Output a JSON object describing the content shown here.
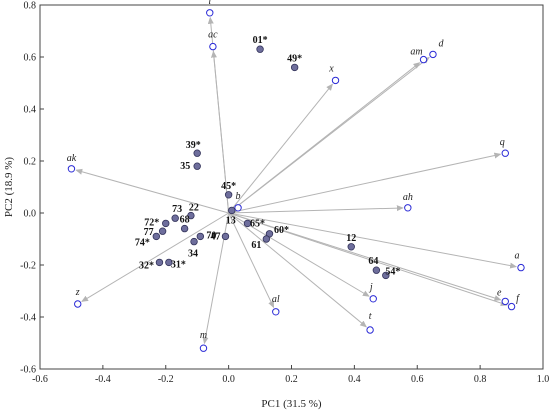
{
  "chart_data": {
    "type": "scatter",
    "subtype": "pca-biplot",
    "xlabel": "PC1 (31.5 %)",
    "ylabel": "PC2 (18.9 %)",
    "xlim": [
      -0.6,
      1.0
    ],
    "ylim": [
      -0.6,
      0.8
    ],
    "x_ticks": [
      "-0.6",
      "-0.4",
      "-0.2",
      "0.0",
      "0.2",
      "0.4",
      "0.6",
      "0.8",
      "1.0"
    ],
    "y_ticks": [
      "-0.6",
      "-0.4",
      "-0.2",
      "0.0",
      "0.2",
      "0.4",
      "0.6",
      "0.8"
    ],
    "grid": false,
    "colors": {
      "variable_marker": "#2a2ad6",
      "observation_marker": "#6e6e9c",
      "arrow": "#b4b4b4"
    },
    "variables": [
      {
        "label": "i",
        "x": -0.06,
        "y": 0.77
      },
      {
        "label": "ac",
        "x": -0.05,
        "y": 0.64
      },
      {
        "label": "am",
        "x": 0.62,
        "y": 0.59
      },
      {
        "label": "d",
        "x": 0.65,
        "y": 0.61
      },
      {
        "label": "x",
        "x": 0.34,
        "y": 0.51
      },
      {
        "label": "q",
        "x": 0.88,
        "y": 0.23
      },
      {
        "label": "ak",
        "x": -0.5,
        "y": 0.17
      },
      {
        "label": "b",
        "x": 0.03,
        "y": 0.02
      },
      {
        "label": "ah",
        "x": 0.57,
        "y": 0.02
      },
      {
        "label": "a",
        "x": 0.93,
        "y": -0.21
      },
      {
        "label": "e",
        "x": 0.88,
        "y": -0.34
      },
      {
        "label": "f",
        "x": 0.9,
        "y": -0.36
      },
      {
        "label": "j",
        "x": 0.46,
        "y": -0.33
      },
      {
        "label": "t",
        "x": 0.45,
        "y": -0.45
      },
      {
        "label": "z",
        "x": -0.48,
        "y": -0.35
      },
      {
        "label": "al",
        "x": 0.15,
        "y": -0.38
      },
      {
        "label": "m",
        "x": -0.08,
        "y": -0.52
      }
    ],
    "observations": [
      {
        "label": "01*",
        "x": 0.1,
        "y": 0.63
      },
      {
        "label": "49*",
        "x": 0.21,
        "y": 0.56
      },
      {
        "label": "39*",
        "x": -0.1,
        "y": 0.23
      },
      {
        "label": "35",
        "x": -0.1,
        "y": 0.18
      },
      {
        "label": "45*",
        "x": 0.0,
        "y": 0.07
      },
      {
        "label": "13",
        "x": 0.01,
        "y": 0.01
      },
      {
        "label": "65*",
        "x": 0.06,
        "y": -0.04
      },
      {
        "label": "60*",
        "x": 0.13,
        "y": -0.08
      },
      {
        "label": "61",
        "x": 0.12,
        "y": -0.1
      },
      {
        "label": "47",
        "x": -0.01,
        "y": -0.09
      },
      {
        "label": "22",
        "x": -0.12,
        "y": -0.01
      },
      {
        "label": "73",
        "x": -0.17,
        "y": -0.02
      },
      {
        "label": "72*",
        "x": -0.2,
        "y": -0.04
      },
      {
        "label": "68",
        "x": -0.14,
        "y": -0.06
      },
      {
        "label": "77",
        "x": -0.21,
        "y": -0.07
      },
      {
        "label": "74*",
        "x": -0.23,
        "y": -0.09
      },
      {
        "label": "70",
        "x": -0.09,
        "y": -0.09
      },
      {
        "label": "34",
        "x": -0.11,
        "y": -0.11
      },
      {
        "label": "32*",
        "x": -0.22,
        "y": -0.19
      },
      {
        "label": "31*",
        "x": -0.19,
        "y": -0.19
      },
      {
        "label": "12",
        "x": 0.39,
        "y": -0.13
      },
      {
        "label": "64",
        "x": 0.47,
        "y": -0.22
      },
      {
        "label": "54*",
        "x": 0.5,
        "y": -0.24
      }
    ]
  }
}
